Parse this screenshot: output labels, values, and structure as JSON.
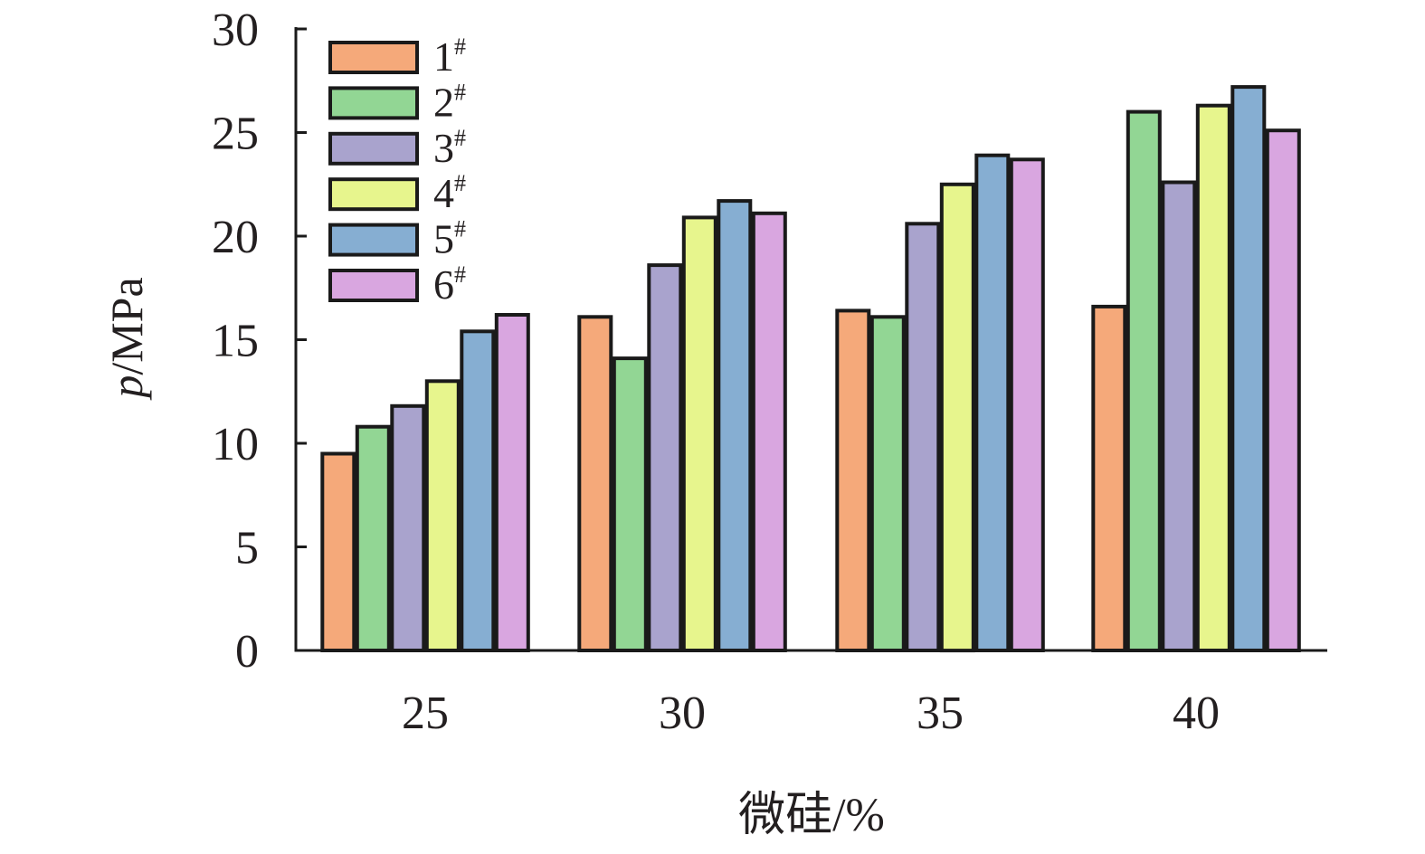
{
  "chart_data": {
    "type": "bar",
    "title": "",
    "xlabel": "微硅/%",
    "ylabel_italic": "p",
    "ylabel_unit": "/MPa",
    "categories": [
      "25",
      "30",
      "35",
      "40"
    ],
    "ylim": [
      0,
      30
    ],
    "yticks": [
      "0",
      "5",
      "10",
      "15",
      "20",
      "25",
      "30"
    ],
    "grid": false,
    "legend_position": "top-left",
    "series": [
      {
        "name": "1",
        "sup": "#",
        "color": "#f5a97a",
        "values": [
          9.5,
          16.1,
          16.4,
          16.6
        ]
      },
      {
        "name": "2",
        "sup": "#",
        "color": "#92d694",
        "values": [
          10.8,
          14.1,
          16.1,
          26.0
        ]
      },
      {
        "name": "3",
        "sup": "#",
        "color": "#a9a3cd",
        "values": [
          11.8,
          18.6,
          20.6,
          22.6
        ]
      },
      {
        "name": "4",
        "sup": "#",
        "color": "#e7f58d",
        "values": [
          13.0,
          20.9,
          22.5,
          26.3
        ]
      },
      {
        "name": "5",
        "sup": "#",
        "color": "#86aed2",
        "values": [
          15.4,
          21.7,
          23.9,
          27.2
        ]
      },
      {
        "name": "6",
        "sup": "#",
        "color": "#d9a6e0",
        "values": [
          16.2,
          21.1,
          23.7,
          25.1
        ]
      }
    ]
  }
}
